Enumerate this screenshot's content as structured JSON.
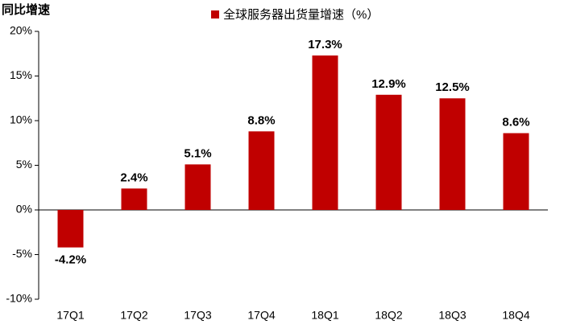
{
  "chart_data": {
    "type": "bar",
    "y_label": "同比增速",
    "categories": [
      "17Q1",
      "17Q2",
      "17Q3",
      "17Q4",
      "18Q1",
      "18Q2",
      "18Q3",
      "18Q4"
    ],
    "series": [
      {
        "name": "全球服务器出货量增速（%）",
        "color": "#c00000",
        "values": [
          -4.2,
          2.4,
          5.1,
          8.8,
          17.3,
          12.9,
          12.5,
          8.6
        ],
        "value_labels": [
          "-4.2%",
          "2.4%",
          "5.1%",
          "8.8%",
          "17.3%",
          "12.9%",
          "12.5%",
          "8.6%"
        ]
      }
    ],
    "ylim": [
      -10,
      20
    ],
    "yticks": [
      {
        "value": -10,
        "label": "-10%"
      },
      {
        "value": -5,
        "label": "-5%"
      },
      {
        "value": 0,
        "label": "0%"
      },
      {
        "value": 5,
        "label": "5%"
      },
      {
        "value": 10,
        "label": "10%"
      },
      {
        "value": 15,
        "label": "15%"
      },
      {
        "value": 20,
        "label": "20%"
      }
    ],
    "legend": "top"
  }
}
